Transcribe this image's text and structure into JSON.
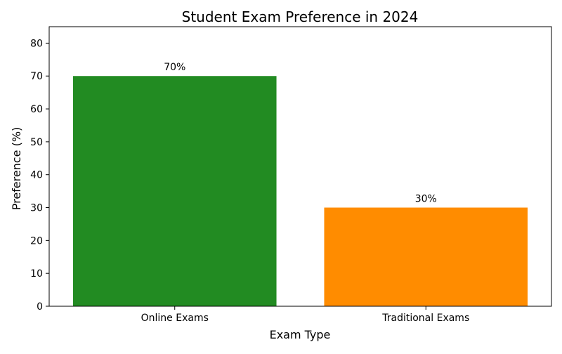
{
  "chart_data": {
    "type": "bar",
    "title": "Student Exam Preference in 2024",
    "xlabel": "Exam Type",
    "ylabel": "Preference (%)",
    "categories": [
      "Online Exams",
      "Traditional Exams"
    ],
    "values": [
      70,
      30
    ],
    "value_labels": [
      "70%",
      "30%"
    ],
    "colors": [
      "#228B22",
      "#FF8C00"
    ],
    "ylim": [
      0,
      85
    ],
    "yticks": [
      0,
      10,
      20,
      30,
      40,
      50,
      60,
      70,
      80
    ],
    "grid": false,
    "legend": "none"
  }
}
